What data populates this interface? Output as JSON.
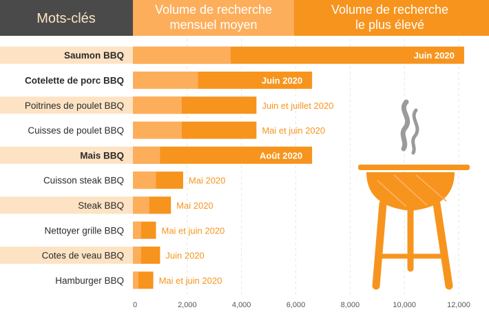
{
  "header": {
    "keywords": "Mots-clés",
    "avg_line1": "Volume de recherche",
    "avg_line2": "mensuel moyen",
    "max_line1": "Volume de recherche",
    "max_line2": "le plus élevé"
  },
  "colors": {
    "header_dark": "#4a4a4a",
    "avg_light": "#fdae5b",
    "max_orange": "#f7941d",
    "row_stripe": "#fde3c4",
    "axis_text": "#555555",
    "grill_smoke": "#9a9a9a"
  },
  "icon": "barbecue-grill-icon",
  "chart_data": {
    "type": "bar",
    "orientation": "horizontal",
    "stacked": false,
    "categories": [
      "Saumon BBQ",
      "Cotelette de porc BBQ",
      "Poitrines de poulet BBQ",
      "Cuisses de poulet BBQ",
      "Mais BBQ",
      "Cuisson steak BBQ",
      "Steak BBQ",
      "Nettoyer grille BBQ",
      "Cotes de veau BBQ",
      "Hamburger BBQ"
    ],
    "bold_categories": [
      true,
      true,
      false,
      false,
      true,
      false,
      false,
      false,
      false,
      false
    ],
    "series": [
      {
        "name": "Volume de recherche mensuel moyen",
        "values": [
          3600,
          2400,
          1800,
          1800,
          1000,
          850,
          600,
          300,
          300,
          200
        ]
      },
      {
        "name": "Volume de recherche le plus élevé",
        "values": [
          12200,
          6600,
          4550,
          4550,
          6600,
          1850,
          1400,
          850,
          1000,
          750
        ]
      }
    ],
    "peak_labels": [
      "Juin 2020",
      "Juin 2020",
      "Juin et juillet 2020",
      "Mai et juin 2020",
      "Août 2020",
      "Mai 2020",
      "Mai 2020",
      "Mai et juin 2020",
      "Juin 2020",
      "Mai et juin 2020"
    ],
    "peak_label_inside": [
      true,
      true,
      false,
      false,
      true,
      false,
      false,
      false,
      false,
      false
    ],
    "x_ticks": [
      "0",
      "2,000",
      "4,000",
      "6,000",
      "8,000",
      "10,000",
      "12,000"
    ],
    "x_tick_values": [
      0,
      2000,
      4000,
      6000,
      8000,
      10000,
      12000
    ],
    "xlim": [
      0,
      12000
    ],
    "grid": true
  }
}
